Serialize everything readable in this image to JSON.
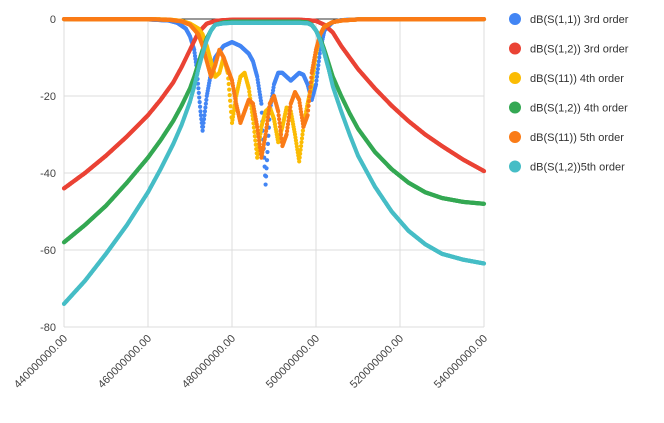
{
  "chart_data": {
    "type": "scatter",
    "title": "",
    "xlabel": "",
    "ylabel": "",
    "xlim": [
      440000000,
      540000000
    ],
    "ylim": [
      -80,
      0
    ],
    "grid": true,
    "legend_position": "right",
    "x_ticks": [
      "440000000.00",
      "460000000.00",
      "480000000.00",
      "500000000.00",
      "520000000.00",
      "540000000.00"
    ],
    "x_tick_values": [
      440000000,
      460000000,
      480000000,
      500000000,
      520000000,
      540000000
    ],
    "y_ticks": [
      "0",
      "-20",
      "-40",
      "-60",
      "-80"
    ],
    "y_tick_values": [
      0,
      -20,
      -40,
      -60,
      -80
    ],
    "series": [
      {
        "name": "dB(S(1,1)) 3rd order",
        "color": "#4285f4",
        "x": [
          440,
          445,
          450,
          455,
          460,
          465,
          467,
          469,
          470,
          471,
          471.5,
          472,
          472.5,
          473,
          474,
          475,
          476,
          478,
          480,
          482,
          484,
          485,
          486,
          487,
          488,
          489,
          490,
          491,
          492,
          493,
          494,
          495,
          496,
          497,
          498,
          499,
          500,
          501,
          502,
          504,
          506,
          510,
          520,
          530,
          540
        ],
        "y": [
          -0.02,
          -0.03,
          -0.04,
          -0.06,
          -0.1,
          -0.4,
          -1.0,
          -2.5,
          -4.5,
          -8,
          -12,
          -18,
          -24,
          -29,
          -20,
          -14,
          -10,
          -7,
          -6,
          -7,
          -9,
          -11,
          -15,
          -22,
          -43,
          -24,
          -17,
          -14,
          -14,
          -15,
          -16,
          -15,
          -14,
          -14.5,
          -17,
          -21,
          -17,
          -8,
          -3,
          -0.8,
          -0.3,
          -0.1,
          -0.05,
          -0.03,
          -0.02
        ]
      },
      {
        "name": "dB(S(1,2)) 3rd order",
        "color": "#ea4335",
        "x": [
          440,
          445,
          450,
          455,
          460,
          463,
          466,
          468,
          470,
          472,
          474,
          476,
          478,
          480,
          484,
          488,
          492,
          496,
          498,
          500,
          502,
          504,
          506,
          508,
          510,
          514,
          518,
          522,
          526,
          530,
          535,
          540
        ],
        "y": [
          -44,
          -40,
          -35.5,
          -30.5,
          -25,
          -21,
          -16.5,
          -12.5,
          -8,
          -3.5,
          -1.2,
          -0.5,
          -0.3,
          -0.2,
          -0.2,
          -0.2,
          -0.2,
          -0.2,
          -0.3,
          -0.5,
          -1.5,
          -3.5,
          -7,
          -10,
          -13,
          -18,
          -22.5,
          -26.5,
          -30,
          -33,
          -36.5,
          -39.5
        ]
      },
      {
        "name": "dB(S(11)) 4th order",
        "color": "#fbbc04",
        "x": [
          440,
          450,
          460,
          465,
          468,
          470,
          472,
          473,
          474,
          475,
          476,
          477,
          478,
          479,
          480,
          481,
          482,
          483,
          484,
          485,
          486,
          487,
          488,
          489,
          490,
          491,
          492,
          493,
          494,
          495,
          496,
          497,
          498,
          499,
          500,
          501,
          502,
          504,
          506,
          510,
          520,
          530,
          540
        ],
        "y": [
          -0.02,
          -0.03,
          -0.05,
          -0.15,
          -0.5,
          -1.2,
          -2.5,
          -4,
          -7,
          -11,
          -15,
          -14,
          -10,
          -14,
          -27,
          -20,
          -15,
          -14,
          -18,
          -26,
          -36,
          -28,
          -24,
          -23,
          -26,
          -32,
          -28,
          -23,
          -24,
          -30,
          -37,
          -28,
          -22,
          -17,
          -9,
          -4,
          -2,
          -0.8,
          -0.4,
          -0.1,
          -0.05,
          -0.03,
          -0.02
        ]
      },
      {
        "name": "dB(S(1,2)) 4th order",
        "color": "#34a853",
        "x": [
          440,
          445,
          450,
          455,
          460,
          463,
          466,
          468,
          470,
          471,
          472,
          473,
          474,
          475,
          476,
          478,
          480,
          484,
          488,
          492,
          496,
          498,
          499,
          500,
          501,
          502,
          503,
          504,
          506,
          508,
          510,
          514,
          518,
          522,
          526,
          530,
          535,
          540
        ],
        "y": [
          -58,
          -53.5,
          -48.5,
          -42.5,
          -36,
          -31.5,
          -26.5,
          -22.5,
          -18,
          -15,
          -11.5,
          -8,
          -5,
          -3,
          -1.5,
          -0.9,
          -0.7,
          -0.7,
          -0.7,
          -0.7,
          -0.7,
          -0.9,
          -1.5,
          -3,
          -5,
          -8,
          -11.5,
          -15,
          -20,
          -24.5,
          -28.5,
          -34.5,
          -39,
          -42.5,
          -45,
          -46.5,
          -47.5,
          -48
        ]
      },
      {
        "name": "dB(S(11)) 5th order",
        "color": "#fa7b17",
        "x": [
          440,
          450,
          460,
          465,
          468,
          470,
          472,
          473,
          474,
          475,
          476,
          477,
          478,
          479,
          480,
          481,
          482,
          483,
          484,
          485,
          486,
          487,
          488,
          489,
          490,
          491,
          492,
          493,
          494,
          495,
          496,
          497,
          498,
          499,
          500,
          501,
          502,
          504,
          506,
          510,
          520,
          530,
          540
        ],
        "y": [
          -0.02,
          -0.03,
          -0.05,
          -0.2,
          -0.6,
          -1.5,
          -4,
          -7,
          -11,
          -15,
          -12,
          -8,
          -10,
          -13,
          -16,
          -22,
          -27,
          -24,
          -21,
          -22,
          -28,
          -36,
          -30,
          -22,
          -20,
          -24,
          -33,
          -30,
          -22,
          -19,
          -21,
          -28,
          -25,
          -14,
          -8,
          -4,
          -2,
          -0.8,
          -0.4,
          -0.1,
          -0.05,
          -0.03,
          -0.02
        ]
      },
      {
        "name": "dB(S(1,2))5th order",
        "color": "#46bdc6",
        "x": [
          440,
          445,
          450,
          455,
          460,
          463,
          466,
          468,
          470,
          471,
          472,
          473,
          474,
          475,
          476,
          478,
          480,
          484,
          488,
          492,
          496,
          498,
          499,
          500,
          501,
          502,
          503,
          504,
          506,
          508,
          510,
          514,
          518,
          522,
          526,
          530,
          535,
          540
        ],
        "y": [
          -74,
          -68,
          -61,
          -53.5,
          -45,
          -39,
          -32.5,
          -27.5,
          -21.5,
          -17.5,
          -13,
          -9,
          -5.5,
          -3,
          -1.5,
          -1.1,
          -1,
          -1,
          -1,
          -1,
          -1,
          -1.1,
          -1.6,
          -3,
          -5.5,
          -9,
          -13,
          -17.5,
          -24,
          -30,
          -35.5,
          -43.5,
          -50,
          -55,
          -58.5,
          -61,
          -62.5,
          -63.5
        ]
      }
    ]
  }
}
